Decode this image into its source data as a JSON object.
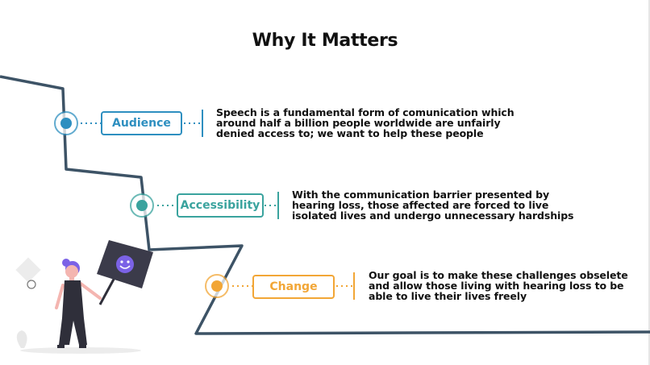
{
  "title": "Why It Matters",
  "colors": {
    "path": "#3d5366",
    "audience": "#2e8fc0",
    "accessibility": "#3aa39e",
    "change": "#f2a636"
  },
  "items": [
    {
      "label": "Audience",
      "lines": [
        "Speech is a fundamental form of comunication which",
        "around half a billion people worldwide are unfairly",
        "denied access to; we want to help these people"
      ]
    },
    {
      "label": "Accessibility",
      "lines": [
        "With the communication barrier presented by",
        "hearing loss, those affected are forced to live",
        "isolated lives and undergo unnecessary hardships"
      ]
    },
    {
      "label": "Change",
      "lines": [
        "Our goal is to make these challenges obselete",
        "and allow those living with hearing loss to be",
        "able to live their lives freely"
      ]
    }
  ],
  "illustration": {
    "figure": "person-holding-sign",
    "sign_icon": "smiley-face-icon"
  }
}
